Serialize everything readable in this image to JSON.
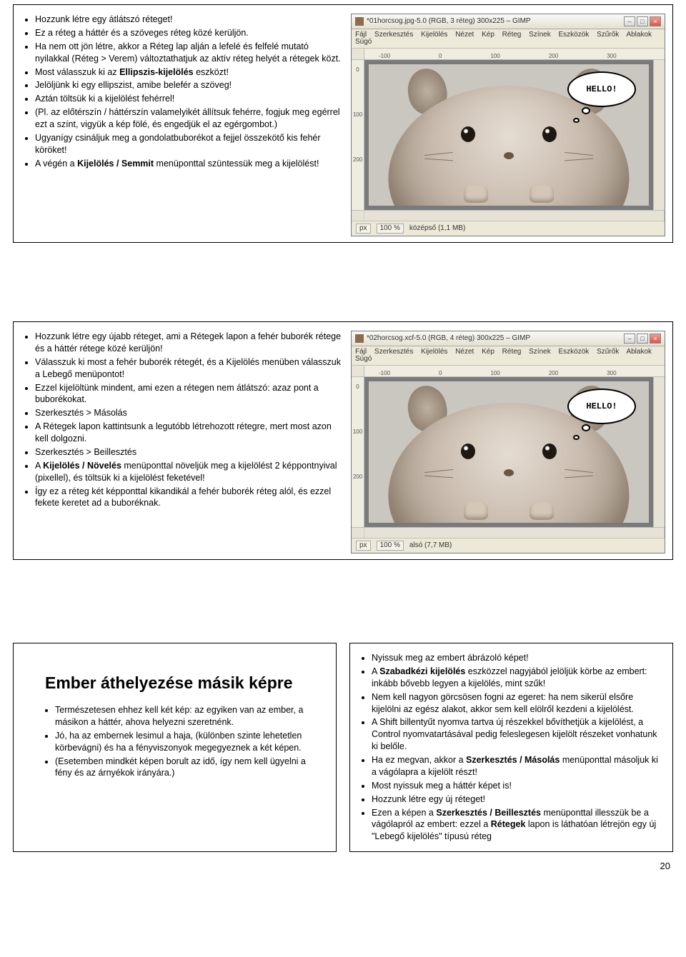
{
  "page_number": "20",
  "slide1": {
    "bullets": [
      "Hozzunk létre egy átlátszó réteget!",
      "Ez a réteg a háttér és a szöveges réteg közé kerüljön.",
      "Ha nem ott jön létre, akkor a Réteg lap alján a lefelé és felfelé mutató nyilakkal (Réteg > Verem) változtathatjuk az aktív réteg helyét a rétegek közt.",
      "Most válasszuk ki az <b>Ellipszis-kijelölés</b> eszközt!",
      "Jelöljünk ki egy ellipszist, amibe belefér a szöveg!",
      "Aztán töltsük ki a kijelölést fehérrel!",
      "(Pl. az előtérszín / háttérszín valamelyikét állítsuk fehérre, fogjuk meg egérrel ezt a színt, vigyük a kép fölé, és engedjük el az egérgombot.)",
      "Ugyanígy csináljuk meg a gondolatbuborékot a fejjel összekötő kis fehér köröket!",
      "A végén a <b>Kijelölés / Semmit</b> menüponttal szüntessük meg a kijelölést!"
    ],
    "gimp": {
      "title": "*01horcsog.jpg-5.0 (RGB, 3 réteg) 300x225 – GIMP",
      "menus": [
        "Fájl",
        "Szerkesztés",
        "Kijelölés",
        "Nézet",
        "Kép",
        "Réteg",
        "Színek",
        "Eszközök",
        "Szűrők",
        "Ablakok",
        "Súgó"
      ],
      "ruler_top": [
        "-100",
        "0",
        "100",
        "200",
        "300"
      ],
      "ruler_left": [
        "0",
        "100",
        "200"
      ],
      "bubble_text": "HELLO!",
      "status_zoom": "100 %",
      "status_dropdown": "px",
      "status_text": "középső (1,1 MB)"
    }
  },
  "slide2": {
    "bullets": [
      "Hozzunk létre egy újabb réteget, ami a Rétegek lapon a fehér buborék rétege és a háttér rétege közé kerüljön!",
      "Válasszuk ki most a fehér buborék rétegét, és a Kijelölés menüben válasszuk a Lebegő menüpontot!",
      "Ezzel kijelöltünk mindent, ami ezen a rétegen nem átlátszó: azaz pont a buborékokat.",
      "Szerkesztés > Másolás",
      "A Rétegek lapon kattintsunk a legutóbb létrehozott rétegre, mert most azon kell dolgozni.",
      "Szerkesztés > Beillesztés",
      "A <b>Kijelölés / Növelés</b> menüponttal növeljük meg a kijelölést 2 képpontnyival (pixellel), és töltsük ki a kijelölést feketével!",
      "Így ez a réteg két képponttal kikandikál a fehér buborék réteg alól, és ezzel fekete keretet ad a buboréknak."
    ],
    "gimp": {
      "title": "*02horcsog.xcf-5.0 (RGB, 4 réteg) 300x225 – GIMP",
      "menus": [
        "Fájl",
        "Szerkesztés",
        "Kijelölés",
        "Nézet",
        "Kép",
        "Réteg",
        "Színek",
        "Eszközök",
        "Szűrők",
        "Ablakok",
        "Súgó"
      ],
      "ruler_top": [
        "-100",
        "0",
        "100",
        "200",
        "300"
      ],
      "ruler_left": [
        "0",
        "100",
        "200"
      ],
      "bubble_text": "HELLO!",
      "status_zoom": "100 %",
      "status_dropdown": "px",
      "status_text": "alsó (7,7 MB)"
    }
  },
  "slide3": {
    "heading": "Ember áthelyezése másik képre",
    "bullets": [
      "Természetesen ehhez kell két kép: az egyiken van az ember, a másikon a háttér, ahova helyezni szeretnénk.",
      "Jó, ha az embernek lesimul a haja, (különben szinte lehetetlen körbevágni) és ha a fényviszonyok megegyeznek a két képen.",
      "(Esetemben mindkét képen borult az idő, így nem kell ügyelni a fény és az árnyékok irányára.)"
    ]
  },
  "slide4": {
    "bullets": [
      "Nyissuk meg az embert ábrázoló képet!",
      "A <b>Szabadkézi kijelölés</b> eszközzel nagyjából jelöljük körbe az embert: inkább bővebb legyen a kijelölés, mint szűk!",
      "Nem kell nagyon görcsösen fogni az egeret: ha nem sikerül elsőre kijelölni az egész alakot, akkor sem kell elölről kezdeni a kijelölést.",
      "A Shift billentyűt nyomva tartva új részekkel bővíthetjük a kijelölést, a Control nyomvatartásával pedig feleslegesen kijelölt részeket vonhatunk ki belőle.",
      "Ha ez megvan, akkor a <b>Szerkesztés / Másolás</b> menüponttal másoljuk ki a vágólapra a kijelölt részt!",
      "Most nyissuk meg a háttér képet is!",
      "Hozzunk létre egy új réteget!",
      "Ezen a képen a <b>Szerkesztés / Beillesztés</b> menüponttal illesszük be a vágólapról az embert: ezzel a <b>Rétegek</b> lapon is láthatóan létrejön egy új \"Lebegő kijelölés\" típusú réteg"
    ]
  },
  "colors": {
    "page_bg": "#ffffff",
    "slide_border": "#000000",
    "text": "#000000",
    "gimp_bg": "#ece9d8",
    "gimp_canvas": "#7a7a7a",
    "bubble_bg": "#ffffff",
    "bubble_border": "#000000"
  }
}
